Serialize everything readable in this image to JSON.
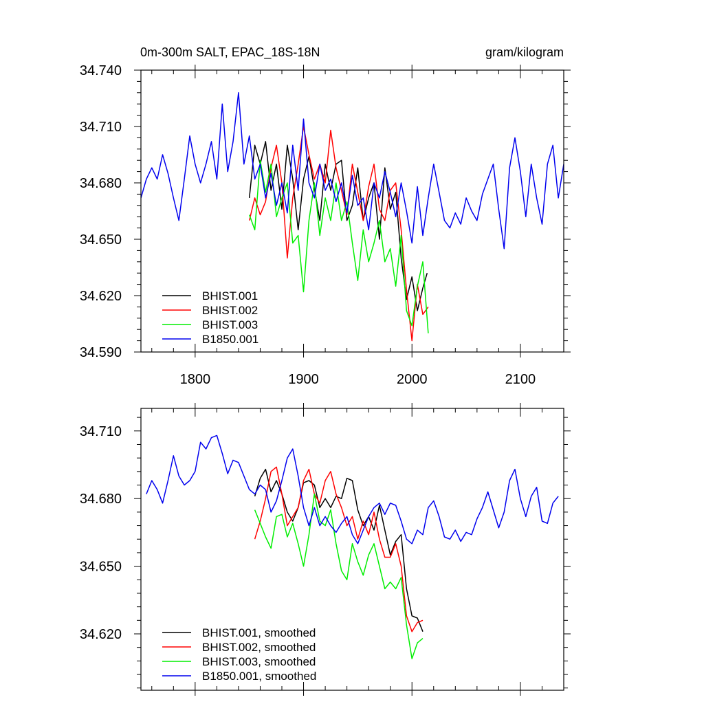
{
  "chart_data": [
    {
      "type": "line",
      "title": "0m-300m SALT, EPAC_18S-18N",
      "units": "gram/kilogram",
      "xlim": [
        1750,
        2140
      ],
      "ylim": [
        34.59,
        34.74
      ],
      "xticks": [
        1800,
        1900,
        2000,
        2100
      ],
      "xtick_labels": [
        "1800",
        "1900",
        "2000",
        "2100"
      ],
      "yticks": [
        34.59,
        34.62,
        34.65,
        34.68,
        34.71,
        34.74
      ],
      "ytick_labels": [
        "34.590",
        "34.620",
        "34.650",
        "34.680",
        "34.710",
        "34.740"
      ],
      "legend_position": "bottom-left",
      "series": [
        {
          "name": "BHIST.001",
          "color": "#000000",
          "x": [
            1850,
            1855,
            1860,
            1865,
            1870,
            1875,
            1880,
            1885,
            1890,
            1895,
            1900,
            1905,
            1910,
            1915,
            1920,
            1925,
            1930,
            1935,
            1940,
            1945,
            1950,
            1955,
            1960,
            1965,
            1970,
            1975,
            1980,
            1985,
            1990,
            1995,
            2000,
            2005,
            2010,
            2014
          ],
          "y": [
            34.672,
            34.7,
            34.69,
            34.702,
            34.676,
            34.69,
            34.666,
            34.7,
            34.682,
            34.655,
            34.682,
            34.694,
            34.677,
            34.66,
            34.69,
            34.676,
            34.69,
            34.692,
            34.66,
            34.668,
            34.688,
            34.66,
            34.672,
            34.68,
            34.65,
            34.688,
            34.666,
            34.675,
            34.64,
            34.618,
            34.63,
            34.612,
            34.624,
            34.632
          ]
        },
        {
          "name": "BHIST.002",
          "color": "#ff0000",
          "x": [
            1850,
            1855,
            1860,
            1865,
            1870,
            1875,
            1880,
            1885,
            1890,
            1895,
            1900,
            1905,
            1910,
            1915,
            1920,
            1925,
            1930,
            1935,
            1940,
            1945,
            1950,
            1955,
            1960,
            1965,
            1970,
            1975,
            1980,
            1985,
            1990,
            1995,
            2000,
            2005,
            2010,
            2015
          ],
          "y": [
            34.66,
            34.672,
            34.663,
            34.67,
            34.688,
            34.7,
            34.68,
            34.64,
            34.672,
            34.69,
            34.71,
            34.695,
            34.682,
            34.69,
            34.68,
            34.708,
            34.688,
            34.676,
            34.663,
            34.69,
            34.675,
            34.66,
            34.678,
            34.69,
            34.666,
            34.66,
            34.676,
            34.68,
            34.655,
            34.623,
            34.596,
            34.626,
            34.61,
            34.614
          ]
        },
        {
          "name": "BHIST.003",
          "color": "#00ee00",
          "x": [
            1850,
            1855,
            1860,
            1865,
            1870,
            1875,
            1880,
            1885,
            1890,
            1895,
            1900,
            1905,
            1910,
            1915,
            1920,
            1925,
            1930,
            1935,
            1940,
            1945,
            1950,
            1955,
            1960,
            1965,
            1970,
            1975,
            1980,
            1985,
            1990,
            1995,
            2000,
            2005,
            2010,
            2015
          ],
          "y": [
            34.663,
            34.655,
            34.692,
            34.675,
            34.69,
            34.662,
            34.672,
            34.68,
            34.648,
            34.652,
            34.622,
            34.66,
            34.68,
            34.652,
            34.672,
            34.66,
            34.68,
            34.66,
            34.67,
            34.648,
            34.628,
            34.655,
            34.638,
            34.648,
            34.66,
            34.638,
            34.645,
            34.625,
            34.652,
            34.612,
            34.604,
            34.625,
            34.638,
            34.6
          ]
        },
        {
          "name": "B1850.001",
          "color": "#0000ee",
          "x": [
            1750,
            1755,
            1760,
            1765,
            1770,
            1775,
            1780,
            1785,
            1790,
            1795,
            1800,
            1805,
            1810,
            1815,
            1820,
            1825,
            1830,
            1835,
            1840,
            1845,
            1850,
            1855,
            1860,
            1865,
            1870,
            1875,
            1880,
            1885,
            1890,
            1895,
            1900,
            1905,
            1910,
            1915,
            1920,
            1925,
            1930,
            1935,
            1940,
            1945,
            1950,
            1955,
            1960,
            1965,
            1970,
            1975,
            1980,
            1985,
            1990,
            1995,
            2000,
            2005,
            2010,
            2015,
            2020,
            2025,
            2030,
            2035,
            2040,
            2045,
            2050,
            2055,
            2060,
            2065,
            2070,
            2075,
            2080,
            2085,
            2090,
            2095,
            2100,
            2105,
            2110,
            2115,
            2120,
            2125,
            2130,
            2135,
            2140
          ],
          "y": [
            34.672,
            34.682,
            34.688,
            34.682,
            34.695,
            34.685,
            34.672,
            34.66,
            34.682,
            34.705,
            34.69,
            34.68,
            34.69,
            34.702,
            34.682,
            34.722,
            34.686,
            34.702,
            34.728,
            34.69,
            34.705,
            34.682,
            34.69,
            34.672,
            34.685,
            34.668,
            34.68,
            34.664,
            34.7,
            34.676,
            34.714,
            34.68,
            34.672,
            34.69,
            34.676,
            34.682,
            34.67,
            34.68,
            34.664,
            34.684,
            34.668,
            34.672,
            34.655,
            34.68,
            34.672,
            34.686,
            34.675,
            34.662,
            34.68,
            34.665,
            34.648,
            34.678,
            34.652,
            34.672,
            34.69,
            34.675,
            34.66,
            34.656,
            34.664,
            34.658,
            34.672,
            34.665,
            34.66,
            34.674,
            34.682,
            34.69,
            34.666,
            34.645,
            34.688,
            34.704,
            34.686,
            34.662,
            34.69,
            34.672,
            34.658,
            34.69,
            34.7,
            34.672,
            34.69
          ]
        }
      ]
    },
    {
      "type": "line",
      "title": "",
      "xlim": [
        1750,
        2140
      ],
      "ylim": [
        34.595,
        34.72
      ],
      "xticks": [
        1800,
        1900,
        2000,
        2100
      ],
      "yticks": [
        34.62,
        34.65,
        34.68,
        34.71
      ],
      "ytick_labels": [
        "34.620",
        "34.650",
        "34.680",
        "34.710"
      ],
      "legend_position": "bottom-left",
      "series": [
        {
          "name": "BHIST.001, smoothed",
          "color": "#000000",
          "x": [
            1855,
            1860,
            1865,
            1870,
            1875,
            1880,
            1885,
            1890,
            1895,
            1900,
            1905,
            1910,
            1915,
            1920,
            1925,
            1930,
            1935,
            1940,
            1945,
            1950,
            1955,
            1960,
            1965,
            1970,
            1975,
            1980,
            1985,
            1990,
            1995,
            2000,
            2005,
            2010
          ],
          "y": [
            34.681,
            34.689,
            34.693,
            34.683,
            34.688,
            34.682,
            34.674,
            34.67,
            34.676,
            34.687,
            34.688,
            34.686,
            34.676,
            34.68,
            34.676,
            34.681,
            34.68,
            34.689,
            34.688,
            34.675,
            34.668,
            34.672,
            34.666,
            34.677,
            34.666,
            34.655,
            34.661,
            34.664,
            34.64,
            34.628,
            34.627,
            34.621
          ]
        },
        {
          "name": "BHIST.002, smoothed",
          "color": "#ff0000",
          "x": [
            1855,
            1860,
            1865,
            1870,
            1875,
            1880,
            1885,
            1890,
            1895,
            1900,
            1905,
            1910,
            1915,
            1920,
            1925,
            1930,
            1935,
            1940,
            1945,
            1950,
            1955,
            1960,
            1965,
            1970,
            1975,
            1980,
            1985,
            1990,
            1995,
            2000,
            2005,
            2010
          ],
          "y": [
            34.662,
            34.67,
            34.68,
            34.692,
            34.694,
            34.682,
            34.668,
            34.672,
            34.676,
            34.688,
            34.693,
            34.682,
            34.678,
            34.688,
            34.692,
            34.682,
            34.676,
            34.668,
            34.672,
            34.662,
            34.67,
            34.664,
            34.674,
            34.662,
            34.654,
            34.654,
            34.66,
            34.65,
            34.628,
            34.621,
            34.625,
            34.626
          ]
        },
        {
          "name": "BHIST.003, smoothed",
          "color": "#00ee00",
          "x": [
            1855,
            1860,
            1865,
            1870,
            1875,
            1880,
            1885,
            1890,
            1895,
            1900,
            1905,
            1910,
            1915,
            1920,
            1925,
            1930,
            1935,
            1940,
            1945,
            1950,
            1955,
            1960,
            1965,
            1970,
            1975,
            1980,
            1985,
            1990,
            1995,
            2000,
            2005,
            2010
          ],
          "y": [
            34.675,
            34.669,
            34.663,
            34.658,
            34.672,
            34.673,
            34.663,
            34.669,
            34.66,
            34.65,
            34.664,
            34.682,
            34.67,
            34.668,
            34.675,
            34.66,
            34.648,
            34.644,
            34.66,
            34.652,
            34.646,
            34.655,
            34.66,
            34.65,
            34.64,
            34.643,
            34.64,
            34.645,
            34.624,
            34.609,
            34.616,
            34.618
          ]
        },
        {
          "name": "B1850.001, smoothed",
          "color": "#0000ee",
          "x": [
            1755,
            1760,
            1765,
            1770,
            1775,
            1780,
            1785,
            1790,
            1795,
            1800,
            1805,
            1810,
            1815,
            1820,
            1825,
            1830,
            1835,
            1840,
            1845,
            1850,
            1855,
            1860,
            1865,
            1870,
            1875,
            1880,
            1885,
            1890,
            1895,
            1900,
            1905,
            1910,
            1915,
            1920,
            1925,
            1930,
            1935,
            1940,
            1945,
            1950,
            1955,
            1960,
            1965,
            1970,
            1975,
            1980,
            1985,
            1990,
            1995,
            2000,
            2005,
            2010,
            2015,
            2020,
            2025,
            2030,
            2035,
            2040,
            2045,
            2050,
            2055,
            2060,
            2065,
            2070,
            2075,
            2080,
            2085,
            2090,
            2095,
            2100,
            2105,
            2110,
            2115,
            2120,
            2125,
            2130,
            2135
          ],
          "y": [
            34.682,
            34.688,
            34.684,
            34.678,
            34.688,
            34.699,
            34.69,
            34.686,
            34.688,
            34.692,
            34.705,
            34.702,
            34.707,
            34.708,
            34.7,
            34.691,
            34.697,
            34.696,
            34.69,
            34.684,
            34.682,
            34.686,
            34.684,
            34.674,
            34.679,
            34.688,
            34.698,
            34.702,
            34.69,
            34.676,
            34.668,
            34.676,
            34.668,
            34.672,
            34.668,
            34.665,
            34.669,
            34.672,
            34.664,
            34.66,
            34.666,
            34.672,
            34.676,
            34.678,
            34.673,
            34.678,
            34.677,
            34.67,
            34.662,
            34.66,
            34.666,
            34.664,
            34.676,
            34.679,
            34.672,
            34.663,
            34.662,
            34.666,
            34.661,
            34.665,
            34.664,
            34.671,
            34.676,
            34.683,
            34.675,
            34.667,
            34.674,
            34.688,
            34.693,
            34.68,
            34.672,
            34.681,
            34.685,
            34.67,
            34.669,
            34.678,
            34.681
          ]
        }
      ]
    }
  ]
}
